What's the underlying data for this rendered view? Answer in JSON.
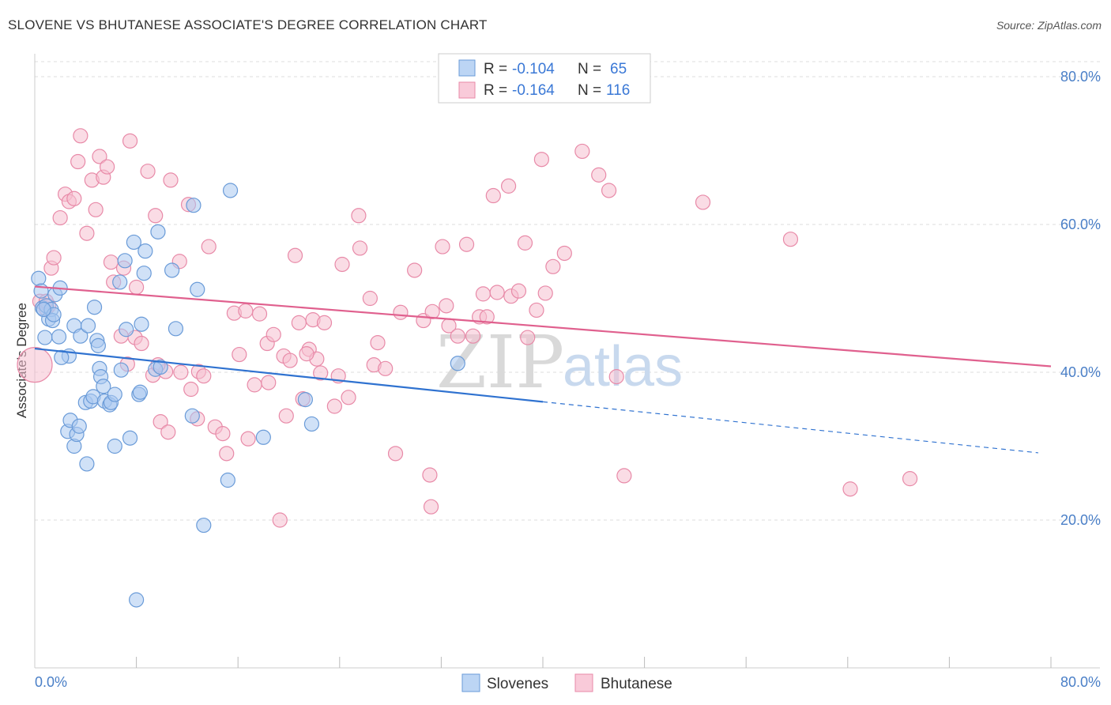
{
  "title": "SLOVENE VS BHUTANESE ASSOCIATE'S DEGREE CORRELATION CHART",
  "source": "Source: ZipAtlas.com",
  "watermark": {
    "zip": "ZIP",
    "atlas": "atlas"
  },
  "legend": {
    "rows": [
      {
        "r_label": "R =",
        "r_value": "-0.104",
        "n_label": "N =",
        "n_value": "65"
      },
      {
        "r_label": "R =",
        "r_value": "-0.164",
        "n_label": "N =",
        "n_value": "116"
      }
    ]
  },
  "bottom_legend": [
    "Slovenes",
    "Bhutanese"
  ],
  "colors": {
    "blue_fill": "#a9c8f0",
    "blue_stroke": "#6a9bd8",
    "blue_line": "#2f72d0",
    "pink_fill": "#f6bfd0",
    "pink_stroke": "#e88aa8",
    "pink_line": "#e0608e",
    "grid": "#dddddd",
    "tick_text": "#4a7fc7"
  },
  "chart_data": {
    "type": "scatter",
    "title": "SLOVENE VS BHUTANESE ASSOCIATE'S DEGREE CORRELATION CHART",
    "xlabel": "",
    "ylabel": "Associate's Degree",
    "xlim": [
      0,
      80
    ],
    "ylim": [
      0,
      84
    ],
    "x_tick_labels": [
      "0.0%",
      "80.0%"
    ],
    "y_ticks": [
      20,
      40,
      60,
      80
    ],
    "y_tick_labels": [
      "20.0%",
      "40.0%",
      "60.0%",
      "80.0%"
    ],
    "grid": true,
    "legend_position": "top-center",
    "series": [
      {
        "name": "Slovenes",
        "R": -0.104,
        "N": 65,
        "trend": {
          "x0": 0,
          "y0": 43.2,
          "x1": 40,
          "y1": 36.0,
          "dashed_to_x": 79,
          "dashed_to_y": 29.1
        },
        "points": [
          [
            0.3,
            52.7
          ],
          [
            0.5,
            51.0
          ],
          [
            0.6,
            48.7
          ],
          [
            0.8,
            44.7
          ],
          [
            0.9,
            49.0
          ],
          [
            1.1,
            47.2
          ],
          [
            1.3,
            48.5
          ],
          [
            1.4,
            47.0
          ],
          [
            1.5,
            47.8
          ],
          [
            1.6,
            50.5
          ],
          [
            1.9,
            44.8
          ],
          [
            2.0,
            51.4
          ],
          [
            2.6,
            32.0
          ],
          [
            2.7,
            42.2
          ],
          [
            2.8,
            33.5
          ],
          [
            3.1,
            46.3
          ],
          [
            3.1,
            30.0
          ],
          [
            3.3,
            31.6
          ],
          [
            3.5,
            32.7
          ],
          [
            3.6,
            44.9
          ],
          [
            4.0,
            35.9
          ],
          [
            4.1,
            27.6
          ],
          [
            4.2,
            46.3
          ],
          [
            4.4,
            36.1
          ],
          [
            4.6,
            36.7
          ],
          [
            4.7,
            48.8
          ],
          [
            4.9,
            44.3
          ],
          [
            5.0,
            43.6
          ],
          [
            5.1,
            40.5
          ],
          [
            5.2,
            39.4
          ],
          [
            5.4,
            38.1
          ],
          [
            5.5,
            36.1
          ],
          [
            5.9,
            35.6
          ],
          [
            6.0,
            35.9
          ],
          [
            6.3,
            37.0
          ],
          [
            6.3,
            30.0
          ],
          [
            6.7,
            52.2
          ],
          [
            6.8,
            40.3
          ],
          [
            7.1,
            55.1
          ],
          [
            7.2,
            45.8
          ],
          [
            7.5,
            31.1
          ],
          [
            7.8,
            57.6
          ],
          [
            8.2,
            37.0
          ],
          [
            8.3,
            37.3
          ],
          [
            8.4,
            46.5
          ],
          [
            8.6,
            53.4
          ],
          [
            8.7,
            56.4
          ],
          [
            9.5,
            40.4
          ],
          [
            9.9,
            40.7
          ],
          [
            9.7,
            59.0
          ],
          [
            10.8,
            53.8
          ],
          [
            11.1,
            45.9
          ],
          [
            12.4,
            34.1
          ],
          [
            12.5,
            62.6
          ],
          [
            12.8,
            51.2
          ],
          [
            13.3,
            19.3
          ],
          [
            15.2,
            25.4
          ],
          [
            15.4,
            64.6
          ],
          [
            18.0,
            31.2
          ],
          [
            21.3,
            36.3
          ],
          [
            21.8,
            33.0
          ],
          [
            33.3,
            41.2
          ],
          [
            8.0,
            9.2
          ],
          [
            0.7,
            48.5
          ],
          [
            2.1,
            42.0
          ]
        ]
      },
      {
        "name": "Bhutanese",
        "R": -0.164,
        "N": 116,
        "trend": {
          "x0": 0,
          "y0": 51.6,
          "x1": 80,
          "y1": 40.8
        },
        "points": [
          [
            0.0,
            41.0
          ],
          [
            0.4,
            49.6
          ],
          [
            0.9,
            48.6
          ],
          [
            1.1,
            49.0
          ],
          [
            1.3,
            54.1
          ],
          [
            1.5,
            55.5
          ],
          [
            2.0,
            60.9
          ],
          [
            2.4,
            64.1
          ],
          [
            2.7,
            63.1
          ],
          [
            3.1,
            63.5
          ],
          [
            3.4,
            68.5
          ],
          [
            3.6,
            72.0
          ],
          [
            4.1,
            58.8
          ],
          [
            4.5,
            66.0
          ],
          [
            4.8,
            62.0
          ],
          [
            5.1,
            69.2
          ],
          [
            5.4,
            66.4
          ],
          [
            5.7,
            67.8
          ],
          [
            6.0,
            54.9
          ],
          [
            6.2,
            52.2
          ],
          [
            6.8,
            44.9
          ],
          [
            7.0,
            54.1
          ],
          [
            7.3,
            41.1
          ],
          [
            7.5,
            71.3
          ],
          [
            7.9,
            44.7
          ],
          [
            8.0,
            51.5
          ],
          [
            8.4,
            43.9
          ],
          [
            8.9,
            67.2
          ],
          [
            9.3,
            39.6
          ],
          [
            9.5,
            61.2
          ],
          [
            9.9,
            33.3
          ],
          [
            10.3,
            40.1
          ],
          [
            10.5,
            31.9
          ],
          [
            10.7,
            66.0
          ],
          [
            11.4,
            55.0
          ],
          [
            11.5,
            40.0
          ],
          [
            12.1,
            62.7
          ],
          [
            12.3,
            37.7
          ],
          [
            12.8,
            33.7
          ],
          [
            12.9,
            40.1
          ],
          [
            13.3,
            39.5
          ],
          [
            13.7,
            57.0
          ],
          [
            14.2,
            32.6
          ],
          [
            14.8,
            31.7
          ],
          [
            15.1,
            29.0
          ],
          [
            15.7,
            48.0
          ],
          [
            16.1,
            42.4
          ],
          [
            16.6,
            48.3
          ],
          [
            16.8,
            31.0
          ],
          [
            17.3,
            38.3
          ],
          [
            17.7,
            47.9
          ],
          [
            18.3,
            43.9
          ],
          [
            18.4,
            38.6
          ],
          [
            18.8,
            45.1
          ],
          [
            19.3,
            20.0
          ],
          [
            19.6,
            42.2
          ],
          [
            19.8,
            34.1
          ],
          [
            20.1,
            41.6
          ],
          [
            20.5,
            55.8
          ],
          [
            20.8,
            46.7
          ],
          [
            21.1,
            36.4
          ],
          [
            21.6,
            43.1
          ],
          [
            21.9,
            47.1
          ],
          [
            22.2,
            41.8
          ],
          [
            22.5,
            39.9
          ],
          [
            22.8,
            46.7
          ],
          [
            23.6,
            35.4
          ],
          [
            23.9,
            39.5
          ],
          [
            24.2,
            54.6
          ],
          [
            24.7,
            36.6
          ],
          [
            25.5,
            61.2
          ],
          [
            25.6,
            56.8
          ],
          [
            26.4,
            50.0
          ],
          [
            26.7,
            41.0
          ],
          [
            27.0,
            44.0
          ],
          [
            27.6,
            40.5
          ],
          [
            28.4,
            29.0
          ],
          [
            28.8,
            48.1
          ],
          [
            29.9,
            53.8
          ],
          [
            30.6,
            47.0
          ],
          [
            31.3,
            48.2
          ],
          [
            31.1,
            26.1
          ],
          [
            31.2,
            21.8
          ],
          [
            32.1,
            57.0
          ],
          [
            32.4,
            49.0
          ],
          [
            32.6,
            46.3
          ],
          [
            33.3,
            44.9
          ],
          [
            34.0,
            57.3
          ],
          [
            34.5,
            44.9
          ],
          [
            35.0,
            47.5
          ],
          [
            35.3,
            50.6
          ],
          [
            35.6,
            47.5
          ],
          [
            36.1,
            63.9
          ],
          [
            36.4,
            50.8
          ],
          [
            37.3,
            65.2
          ],
          [
            37.5,
            50.3
          ],
          [
            38.1,
            51.0
          ],
          [
            38.6,
            57.5
          ],
          [
            38.8,
            44.7
          ],
          [
            39.5,
            48.4
          ],
          [
            39.9,
            68.8
          ],
          [
            40.2,
            50.7
          ],
          [
            40.8,
            54.3
          ],
          [
            41.7,
            56.1
          ],
          [
            43.1,
            69.9
          ],
          [
            44.4,
            66.7
          ],
          [
            45.2,
            64.6
          ],
          [
            45.8,
            39.4
          ],
          [
            46.4,
            26.0
          ],
          [
            52.6,
            63.0
          ],
          [
            59.5,
            58.0
          ],
          [
            64.2,
            24.2
          ],
          [
            68.9,
            25.6
          ],
          [
            0.9,
            49.6
          ],
          [
            9.7,
            41.0
          ],
          [
            21.4,
            42.5
          ]
        ]
      }
    ]
  }
}
